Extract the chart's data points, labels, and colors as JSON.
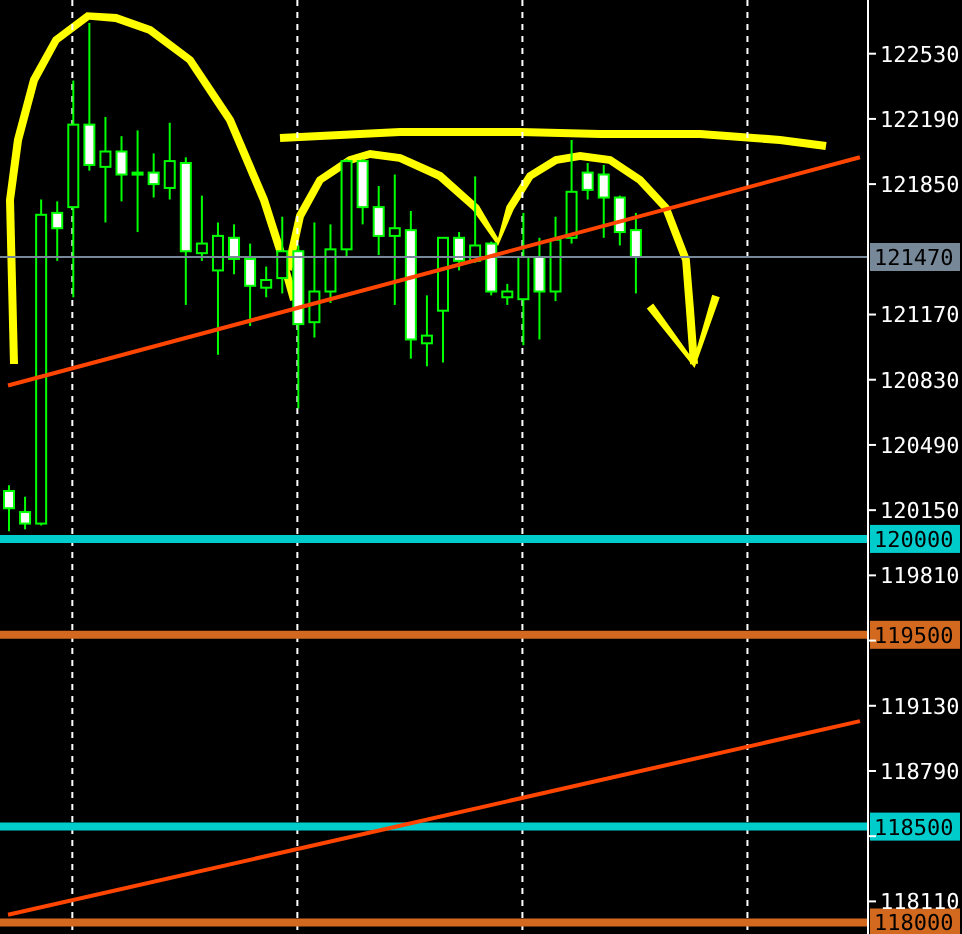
{
  "chart_data": {
    "type": "candlestick",
    "categories": [
      null,
      null,
      null,
      null,
      null,
      null,
      null,
      null,
      null,
      null,
      null,
      null,
      null,
      null,
      null,
      null,
      null,
      null,
      null,
      null,
      null,
      null,
      null,
      null,
      null,
      null,
      null,
      null,
      null,
      null,
      null,
      null,
      null,
      null,
      null,
      null,
      null,
      null,
      null,
      null,
      null,
      null,
      null,
      null,
      null,
      null,
      null,
      null,
      null,
      null,
      null,
      null,
      null,
      null
    ],
    "ylim": [
      117940,
      122810
    ],
    "yticks": [
      122530,
      122190,
      121850,
      121170,
      120830,
      120490,
      120150,
      119810,
      {
        "value": 119470,
        "label": null
      },
      119130,
      118790,
      {
        "value": 118450,
        "label": null
      },
      118110
    ],
    "grid": "x",
    "series": [
      {
        "color": "#00ff00",
        "ohlc": [
          [
            120250,
            120280,
            120040,
            120160
          ],
          [
            120140,
            120220,
            120050,
            120080
          ],
          [
            120080,
            121770,
            120070,
            121690
          ],
          [
            121700,
            121760,
            121450,
            121620
          ],
          [
            121730,
            122390,
            121260,
            122160
          ],
          [
            122160,
            122690,
            121920,
            121950
          ],
          [
            121940,
            122200,
            121650,
            122020
          ],
          [
            122020,
            122100,
            121760,
            121900
          ],
          [
            121910,
            122130,
            121600,
            121910
          ],
          [
            121910,
            122010,
            121780,
            121850
          ],
          [
            121830,
            122170,
            121770,
            121970
          ],
          [
            121960,
            121990,
            121220,
            121500
          ],
          [
            121490,
            121790,
            121450,
            121540
          ],
          [
            121400,
            121650,
            120960,
            121580
          ],
          [
            121570,
            121640,
            121380,
            121460
          ],
          [
            121460,
            121540,
            121110,
            121320
          ],
          [
            121310,
            121420,
            121260,
            121350
          ],
          [
            121360,
            121680,
            121280,
            121500
          ],
          [
            121500,
            121530,
            120680,
            121120
          ],
          [
            121130,
            121650,
            121050,
            121290
          ],
          [
            121290,
            121640,
            121230,
            121510
          ],
          [
            121510,
            121980,
            121470,
            121970
          ],
          [
            121970,
            121980,
            121640,
            121730
          ],
          [
            121730,
            121840,
            121480,
            121580
          ],
          [
            121580,
            121900,
            121220,
            121620
          ],
          [
            121610,
            121710,
            120940,
            121040
          ],
          [
            121020,
            121270,
            120900,
            121060
          ],
          [
            121190,
            121570,
            120920,
            121570
          ],
          [
            121570,
            121600,
            121400,
            121450
          ],
          [
            121450,
            121890,
            121440,
            121530
          ],
          [
            121540,
            121550,
            121270,
            121290
          ],
          [
            121260,
            121330,
            121220,
            121290
          ],
          [
            121250,
            121700,
            121010,
            121470
          ],
          [
            121470,
            121570,
            121040,
            121290
          ],
          [
            121290,
            121680,
            121240,
            121560
          ],
          [
            121570,
            122080,
            121540,
            121810
          ],
          [
            121910,
            121960,
            121770,
            121820
          ],
          [
            121900,
            121950,
            121570,
            121780
          ],
          [
            121780,
            121790,
            121530,
            121600
          ],
          [
            121610,
            121700,
            121280,
            121470
          ],
          null,
          null,
          null,
          null,
          null,
          null,
          null,
          null,
          null,
          null,
          null,
          null,
          null,
          null
        ],
        "colors": [
          "#ffffff",
          "#ffffff",
          "#000000",
          "#ffffff",
          "#000000",
          "#ffffff",
          "#000000",
          "#ffffff",
          "#ffffff",
          "#ffffff",
          "#000000",
          "#ffffff",
          "#000000",
          "#000000",
          "#ffffff",
          "#ffffff",
          "#000000",
          "#000000",
          "#ffffff",
          "#000000",
          "#000000",
          "#000000",
          "#ffffff",
          "#ffffff",
          "#000000",
          "#ffffff",
          "#000000",
          "#000000",
          "#ffffff",
          "#000000",
          "#ffffff",
          "#000000",
          "#000000",
          "#ffffff",
          "#000000",
          "#000000",
          "#ffffff",
          "#ffffff",
          "#ffffff",
          "#ffffff",
          null,
          null,
          null,
          null,
          null,
          null,
          null,
          null,
          null,
          null,
          null,
          null,
          null,
          null
        ]
      },
      {
        "type": "line",
        "color": "#ff4500",
        "values": [
          120800,
          null,
          null,
          null,
          null,
          null,
          null,
          null,
          null,
          null,
          null,
          null,
          null,
          null,
          null,
          null,
          null,
          null,
          null,
          null,
          null,
          null,
          null,
          null,
          null,
          null,
          null,
          null,
          null,
          null,
          null,
          null,
          null,
          null,
          null,
          null,
          null,
          null,
          null,
          null,
          null,
          null,
          null,
          null,
          null,
          null,
          null,
          null,
          null,
          null,
          null,
          null,
          null,
          121990
        ]
      },
      {
        "type": "line",
        "color": "#ff4500",
        "values": [
          118040,
          null,
          null,
          null,
          null,
          null,
          null,
          null,
          null,
          null,
          null,
          null,
          null,
          null,
          null,
          null,
          null,
          null,
          null,
          null,
          null,
          null,
          null,
          null,
          null,
          null,
          null,
          null,
          null,
          null,
          null,
          null,
          null,
          null,
          null,
          null,
          null,
          null,
          null,
          null,
          null,
          null,
          null,
          null,
          null,
          null,
          null,
          null,
          null,
          null,
          null,
          null,
          null,
          119050
        ]
      }
    ],
    "ref_lines": [
      {
        "axis": "y",
        "value": 121470,
        "label": "121470",
        "color": "#778899"
      },
      {
        "axis": "y",
        "value": 120000,
        "label": "120000",
        "color": "#00cccc"
      },
      {
        "axis": "y",
        "value": 119500,
        "label": "119500",
        "color": "#d2691e"
      },
      {
        "axis": "y",
        "value": 118500,
        "label": "118500",
        "color": "#00cccc"
      },
      {
        "axis": "y",
        "value": 118000,
        "label": "118000",
        "color": "#d2691e"
      }
    ]
  }
}
